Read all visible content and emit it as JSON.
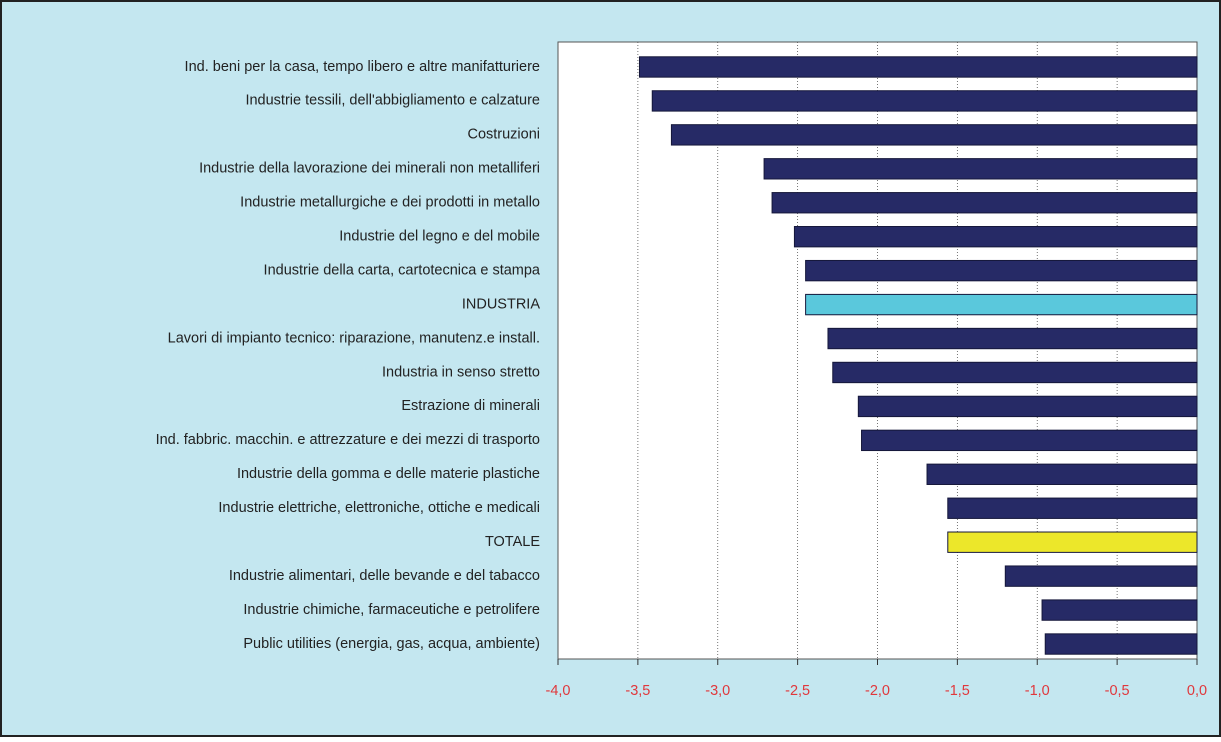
{
  "chart_data": {
    "type": "barh",
    "categories": [
      "Ind. beni per la casa, tempo libero e altre manifatturiere",
      "Industrie tessili, dell'abbigliamento e calzature",
      "Costruzioni",
      "Industrie della lavorazione dei minerali non metalliferi",
      "Industrie metallurgiche e dei prodotti in metallo",
      "Industrie del legno e del mobile",
      "Industrie della carta, cartotecnica e stampa",
      "INDUSTRIA",
      "Lavori di impianto tecnico: riparazione, manutenz.e install.",
      "Industria in senso stretto",
      "Estrazione di minerali",
      "Ind. fabbric. macchin. e attrezzature e dei mezzi di trasporto",
      "Industrie della gomma e delle materie plastiche",
      "Industrie elettriche, elettroniche, ottiche e medicali",
      "TOTALE",
      "Industrie alimentari, delle bevande e del tabacco",
      "Industrie chimiche, farmaceutiche e petrolifere",
      "Public utilities (energia, gas, acqua, ambiente)"
    ],
    "values": [
      -3.49,
      -3.41,
      -3.29,
      -2.71,
      -2.66,
      -2.52,
      -2.45,
      -2.45,
      -2.31,
      -2.28,
      -2.12,
      -2.1,
      -1.69,
      -1.56,
      -1.56,
      -1.2,
      -0.97,
      -0.95
    ],
    "colors": [
      "#262a66",
      "#262a66",
      "#262a66",
      "#262a66",
      "#262a66",
      "#262a66",
      "#262a66",
      "#5ac8dc",
      "#262a66",
      "#262a66",
      "#262a66",
      "#262a66",
      "#262a66",
      "#262a66",
      "#ece72a",
      "#262a66",
      "#262a66",
      "#262a66"
    ],
    "xlim": [
      -4.0,
      0.0
    ],
    "xticks": [
      {
        "value": -4.0,
        "label": "-4,0"
      },
      {
        "value": -3.5,
        "label": "-3,5"
      },
      {
        "value": -3.0,
        "label": "-3,0"
      },
      {
        "value": -2.5,
        "label": "-2,5"
      },
      {
        "value": -2.0,
        "label": "-2,0"
      },
      {
        "value": -1.5,
        "label": "-1,5"
      },
      {
        "value": -1.0,
        "label": "-1,0"
      },
      {
        "value": -0.5,
        "label": "-0,5"
      },
      {
        "value": 0.0,
        "label": "0,0"
      }
    ],
    "grid": true
  }
}
